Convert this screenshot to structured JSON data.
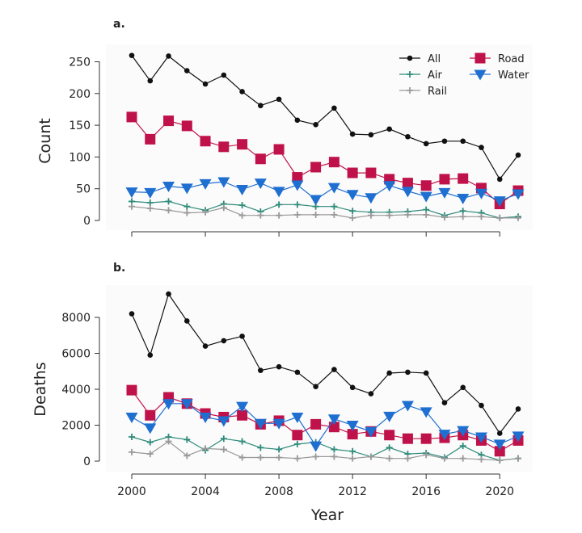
{
  "chart_data": [
    {
      "type": "line",
      "panel_label": "a.",
      "ylabel": "Count",
      "x": [
        2000,
        2001,
        2002,
        2003,
        2004,
        2005,
        2006,
        2007,
        2008,
        2009,
        2010,
        2011,
        2012,
        2013,
        2014,
        2015,
        2016,
        2017,
        2018,
        2019,
        2020,
        2021
      ],
      "ylim": [
        0,
        270
      ],
      "yticks": [
        0,
        50,
        100,
        150,
        200,
        250
      ],
      "legend_position": "top-right",
      "series": [
        {
          "name": "All",
          "color": "#111111",
          "marker": "circle",
          "values": [
            260,
            220,
            259,
            236,
            215,
            229,
            203,
            181,
            191,
            158,
            151,
            177,
            136,
            135,
            144,
            132,
            121,
            125,
            125,
            115,
            65,
            103
          ]
        },
        {
          "name": "Road",
          "color": "#c0124a",
          "marker": "square",
          "values": [
            163,
            128,
            157,
            149,
            125,
            116,
            120,
            97,
            112,
            68,
            84,
            92,
            75,
            75,
            65,
            59,
            55,
            65,
            66,
            51,
            26,
            47
          ]
        },
        {
          "name": "Air",
          "color": "#2e8b7a",
          "marker": "plus",
          "values": [
            30,
            28,
            30,
            22,
            16,
            26,
            24,
            14,
            25,
            25,
            22,
            22,
            15,
            13,
            13,
            14,
            17,
            8,
            15,
            12,
            4,
            6
          ]
        },
        {
          "name": "Water",
          "color": "#1f6fd1",
          "marker": "triangle-down",
          "values": [
            45,
            44,
            54,
            51,
            58,
            61,
            49,
            59,
            46,
            56,
            33,
            52,
            41,
            36,
            55,
            46,
            38,
            44,
            35,
            43,
            31,
            42
          ]
        },
        {
          "name": "Rail",
          "color": "#999999",
          "marker": "plus",
          "values": [
            22,
            19,
            16,
            12,
            13,
            20,
            8,
            8,
            8,
            9,
            9,
            9,
            4,
            8,
            8,
            9,
            9,
            5,
            6,
            6,
            4,
            4
          ]
        }
      ]
    },
    {
      "type": "line",
      "panel_label": "b.",
      "xlabel": "Year",
      "ylabel": "Deaths",
      "x": [
        2000,
        2001,
        2002,
        2003,
        2004,
        2005,
        2006,
        2007,
        2008,
        2009,
        2010,
        2011,
        2012,
        2013,
        2014,
        2015,
        2016,
        2017,
        2018,
        2019,
        2020,
        2021
      ],
      "ylim": [
        0,
        9500
      ],
      "yticks": [
        0,
        2000,
        4000,
        6000,
        8000
      ],
      "xticks": [
        2000,
        2004,
        2008,
        2012,
        2016,
        2020
      ],
      "series": [
        {
          "name": "All",
          "color": "#111111",
          "marker": "circle",
          "values": [
            8200,
            5900,
            9300,
            7800,
            6400,
            6700,
            6950,
            5050,
            5250,
            4950,
            4150,
            5100,
            4100,
            3750,
            4900,
            4950,
            4900,
            3250,
            4100,
            3100,
            1550,
            2900
          ]
        },
        {
          "name": "Road",
          "color": "#c0124a",
          "marker": "square",
          "values": [
            3950,
            2550,
            3550,
            3200,
            2650,
            2450,
            2550,
            2050,
            2250,
            1450,
            2050,
            1900,
            1500,
            1650,
            1450,
            1250,
            1250,
            1300,
            1450,
            1150,
            550,
            1150
          ]
        },
        {
          "name": "Air",
          "color": "#2e8b7a",
          "marker": "plus",
          "values": [
            1350,
            1050,
            1350,
            1200,
            600,
            1250,
            1100,
            750,
            650,
            950,
            1050,
            650,
            550,
            250,
            750,
            400,
            450,
            200,
            850,
            350,
            50,
            150
          ]
        },
        {
          "name": "Water",
          "color": "#1f6fd1",
          "marker": "triangle-down",
          "values": [
            2450,
            1850,
            3200,
            3200,
            2450,
            2250,
            3050,
            2100,
            2100,
            2450,
            850,
            2350,
            2000,
            1650,
            2500,
            3100,
            2750,
            1500,
            1700,
            1350,
            950,
            1400
          ]
        },
        {
          "name": "Rail",
          "color": "#999999",
          "marker": "plus",
          "values": [
            500,
            400,
            1100,
            300,
            700,
            650,
            200,
            200,
            200,
            150,
            250,
            250,
            150,
            250,
            150,
            150,
            350,
            150,
            150,
            100,
            50,
            150
          ]
        }
      ]
    }
  ]
}
